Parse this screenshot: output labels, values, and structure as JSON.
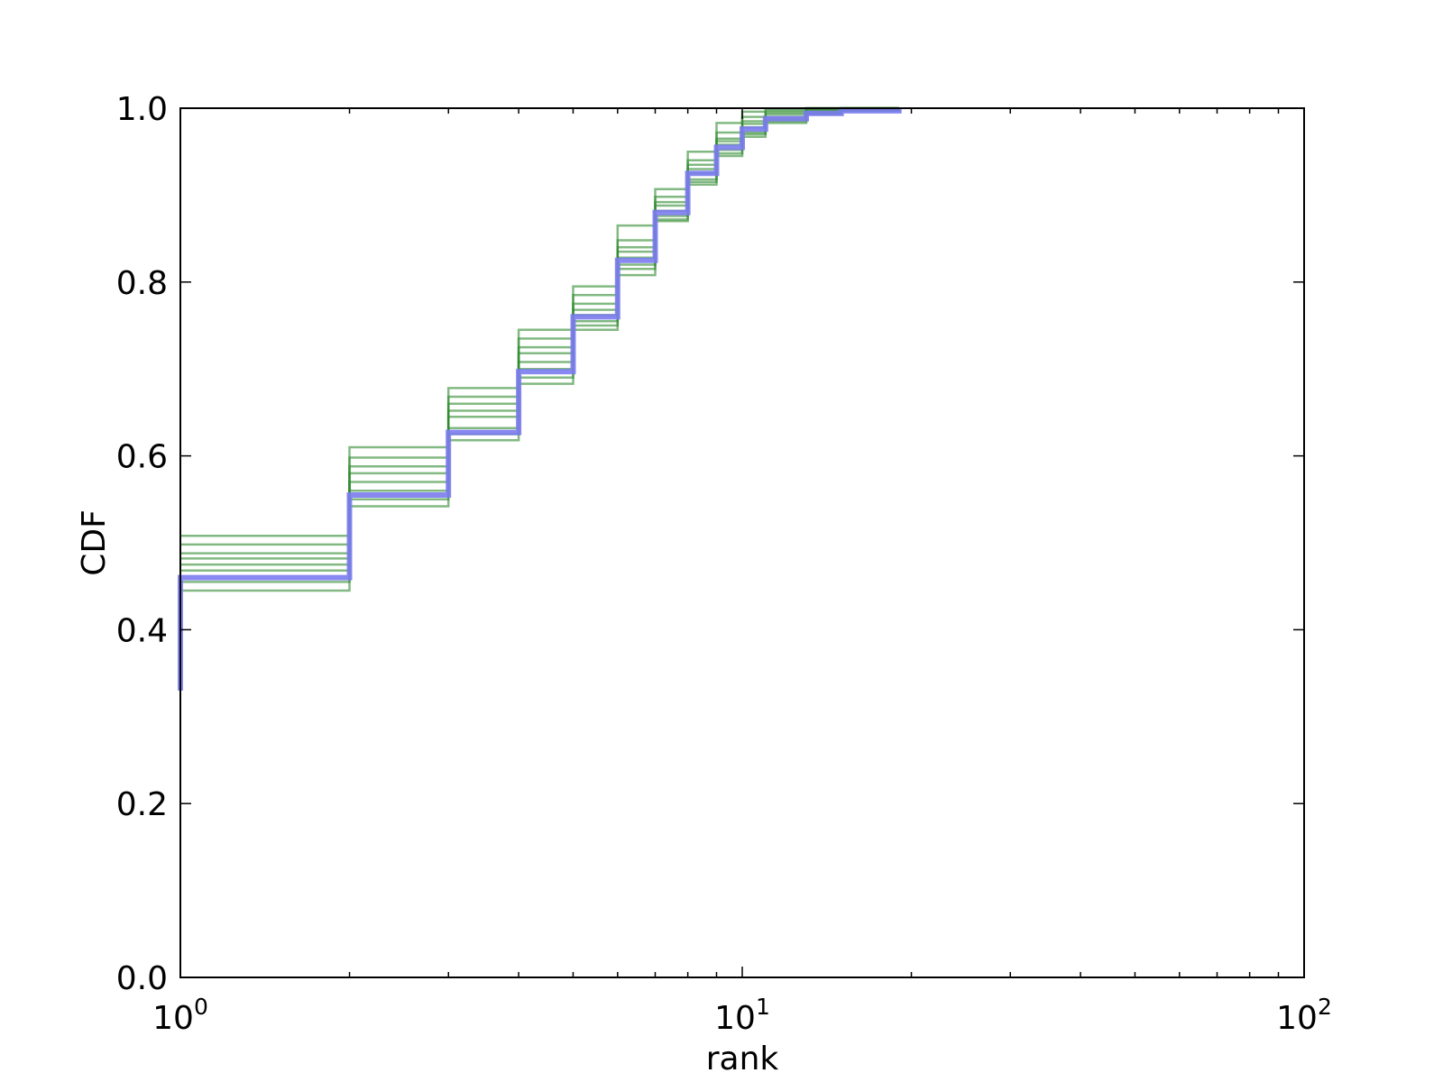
{
  "chart_data": {
    "type": "line",
    "title": "",
    "xlabel": "rank",
    "ylabel": "CDF",
    "xscale": "log",
    "xlim": [
      1,
      100
    ],
    "ylim": [
      0,
      1
    ],
    "grid": false,
    "legend": "none",
    "x_ticks": [
      {
        "base": "10",
        "exp": "0",
        "value": 1
      },
      {
        "base": "10",
        "exp": "1",
        "value": 10
      },
      {
        "base": "10",
        "exp": "2",
        "value": 100
      }
    ],
    "y_ticks": [
      "0.0",
      "0.2",
      "0.4",
      "0.6",
      "0.8",
      "1.0"
    ],
    "step_x": [
      1,
      2,
      3,
      4,
      5,
      6,
      7,
      8,
      9,
      10,
      11,
      13,
      15,
      19
    ],
    "main_series": {
      "color": "#7b7bf0",
      "start": 0.33,
      "values": [
        0.46,
        0.555,
        0.627,
        0.697,
        0.76,
        0.825,
        0.88,
        0.925,
        0.955,
        0.976,
        0.988,
        0.994,
        0.997,
        1.0
      ]
    },
    "sample_series": {
      "color": "#2e8b2e",
      "series": [
        {
          "values": [
            0.508,
            0.61,
            0.678,
            0.745,
            0.795,
            0.865,
            0.907,
            0.95,
            0.983,
            0.996,
            0.999,
            1.0,
            1.0,
            1.0
          ]
        },
        {
          "values": [
            0.498,
            0.598,
            0.668,
            0.735,
            0.785,
            0.848,
            0.898,
            0.94,
            0.972,
            0.99,
            0.997,
            1.0,
            1.0,
            1.0
          ]
        },
        {
          "values": [
            0.488,
            0.588,
            0.66,
            0.725,
            0.775,
            0.84,
            0.892,
            0.935,
            0.965,
            0.985,
            0.995,
            0.999,
            1.0,
            1.0
          ]
        },
        {
          "values": [
            0.482,
            0.58,
            0.652,
            0.718,
            0.768,
            0.835,
            0.888,
            0.93,
            0.962,
            0.982,
            0.993,
            0.998,
            1.0,
            1.0
          ]
        },
        {
          "values": [
            0.475,
            0.57,
            0.645,
            0.708,
            0.762,
            0.828,
            0.882,
            0.925,
            0.958,
            0.978,
            0.99,
            0.997,
            0.999,
            1.0
          ]
        },
        {
          "values": [
            0.468,
            0.56,
            0.632,
            0.7,
            0.755,
            0.82,
            0.876,
            0.918,
            0.952,
            0.972,
            0.987,
            0.995,
            0.998,
            1.0
          ]
        },
        {
          "values": [
            0.455,
            0.55,
            0.625,
            0.69,
            0.75,
            0.815,
            0.872,
            0.915,
            0.948,
            0.97,
            0.985,
            0.994,
            0.998,
            1.0
          ]
        },
        {
          "values": [
            0.445,
            0.542,
            0.618,
            0.683,
            0.745,
            0.808,
            0.87,
            0.912,
            0.945,
            0.967,
            0.983,
            0.993,
            0.997,
            1.0
          ]
        }
      ]
    }
  }
}
